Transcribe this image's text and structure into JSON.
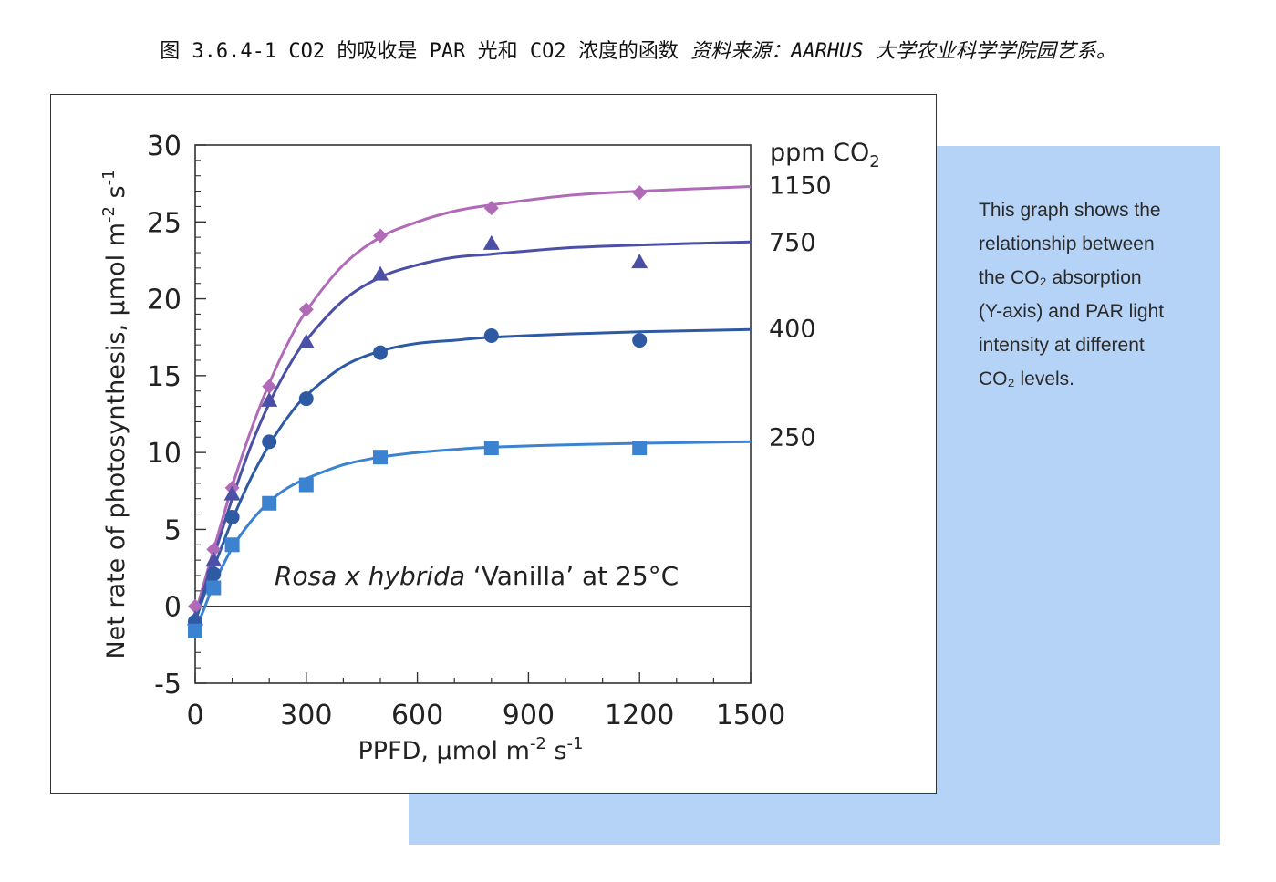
{
  "caption": {
    "main": "图 3.6.4-1 CO2 的吸收是 PAR 光和 CO2 浓度的函数",
    "source": "资料来源：AARHUS 大学农业科学学院园艺系。"
  },
  "description_panel": {
    "lines": [
      "This graph shows the",
      "relationship between",
      "the CO₂ absorption",
      "(Y-axis) and PAR light",
      "intensity at different",
      "CO₂ levels."
    ]
  },
  "chart_data": {
    "type": "line",
    "xlabel": "PPFD, µmol m",
    "xlabel_sup1": "-2",
    "xlabel_mid": " s",
    "xlabel_sup2": "-1",
    "ylabel": "Net rate of photosynthesis, µmol m",
    "ylabel_sup1": "-2",
    "ylabel_mid": " s",
    "ylabel_sup2": "-1",
    "xlim": [
      0,
      1500
    ],
    "ylim": [
      -5,
      30
    ],
    "x_ticks": [
      "0",
      "300",
      "600",
      "900",
      "1200",
      "1500"
    ],
    "y_ticks": [
      "-5",
      "0",
      "5",
      "10",
      "15",
      "20",
      "25",
      "30"
    ],
    "zero_line": true,
    "annotation_species": "Rosa x hybrida",
    "annotation_rest": " ‘Vanilla’ at 25°C",
    "legend_title": "ppm CO",
    "legend_title_sub": "2",
    "series": [
      {
        "name": "1150",
        "marker": "diamond",
        "color": "#b06ab8",
        "points": [
          [
            0,
            0
          ],
          [
            50,
            3.7
          ],
          [
            100,
            7.7
          ],
          [
            200,
            14.3
          ],
          [
            300,
            19.3
          ],
          [
            500,
            24.1
          ],
          [
            800,
            25.9
          ],
          [
            1200,
            26.9
          ]
        ],
        "curve": [
          [
            0,
            -0.5
          ],
          [
            25,
            1.6
          ],
          [
            50,
            3.7
          ],
          [
            100,
            7.8
          ],
          [
            150,
            11.4
          ],
          [
            200,
            14.5
          ],
          [
            250,
            17.1
          ],
          [
            300,
            19.2
          ],
          [
            400,
            22.2
          ],
          [
            500,
            24.0
          ],
          [
            600,
            25.0
          ],
          [
            700,
            25.7
          ],
          [
            800,
            26.1
          ],
          [
            1000,
            26.7
          ],
          [
            1200,
            27.0
          ],
          [
            1500,
            27.3
          ]
        ]
      },
      {
        "name": "750",
        "marker": "triangle",
        "color": "#4b4fa6",
        "points": [
          [
            0,
            -0.8
          ],
          [
            50,
            3.0
          ],
          [
            100,
            7.3
          ],
          [
            200,
            13.4
          ],
          [
            300,
            17.2
          ],
          [
            500,
            21.6
          ],
          [
            800,
            23.6
          ],
          [
            1200,
            22.4
          ]
        ],
        "curve": [
          [
            0,
            -0.8
          ],
          [
            25,
            1.2
          ],
          [
            50,
            3.2
          ],
          [
            100,
            7.0
          ],
          [
            150,
            10.4
          ],
          [
            200,
            13.2
          ],
          [
            250,
            15.5
          ],
          [
            300,
            17.3
          ],
          [
            400,
            19.9
          ],
          [
            500,
            21.4
          ],
          [
            600,
            22.2
          ],
          [
            700,
            22.7
          ],
          [
            800,
            22.9
          ],
          [
            1000,
            23.3
          ],
          [
            1200,
            23.5
          ],
          [
            1500,
            23.7
          ]
        ]
      },
      {
        "name": "400",
        "marker": "circle",
        "color": "#2e5aa3",
        "points": [
          [
            0,
            -1.0
          ],
          [
            50,
            2.1
          ],
          [
            100,
            5.8
          ],
          [
            200,
            10.7
          ],
          [
            300,
            13.5
          ],
          [
            500,
            16.5
          ],
          [
            800,
            17.6
          ],
          [
            1200,
            17.3
          ]
        ],
        "curve": [
          [
            0,
            -1.0
          ],
          [
            25,
            0.8
          ],
          [
            50,
            2.5
          ],
          [
            100,
            5.6
          ],
          [
            150,
            8.3
          ],
          [
            200,
            10.5
          ],
          [
            250,
            12.3
          ],
          [
            300,
            13.7
          ],
          [
            400,
            15.6
          ],
          [
            500,
            16.6
          ],
          [
            600,
            17.1
          ],
          [
            700,
            17.3
          ],
          [
            800,
            17.5
          ],
          [
            1000,
            17.7
          ],
          [
            1200,
            17.85
          ],
          [
            1500,
            18.0
          ]
        ]
      },
      {
        "name": "250",
        "marker": "square",
        "color": "#3b82d0",
        "points": [
          [
            0,
            -1.6
          ],
          [
            50,
            1.2
          ],
          [
            100,
            4.0
          ],
          [
            200,
            6.7
          ],
          [
            300,
            7.9
          ],
          [
            500,
            9.7
          ],
          [
            800,
            10.3
          ],
          [
            1200,
            10.3
          ]
        ],
        "curve": [
          [
            0,
            -1.6
          ],
          [
            25,
            -0.1
          ],
          [
            50,
            1.4
          ],
          [
            100,
            3.8
          ],
          [
            150,
            5.5
          ],
          [
            200,
            6.8
          ],
          [
            250,
            7.7
          ],
          [
            300,
            8.3
          ],
          [
            400,
            9.2
          ],
          [
            500,
            9.7
          ],
          [
            600,
            10.0
          ],
          [
            700,
            10.2
          ],
          [
            800,
            10.35
          ],
          [
            1000,
            10.5
          ],
          [
            1200,
            10.6
          ],
          [
            1500,
            10.7
          ]
        ]
      }
    ]
  }
}
